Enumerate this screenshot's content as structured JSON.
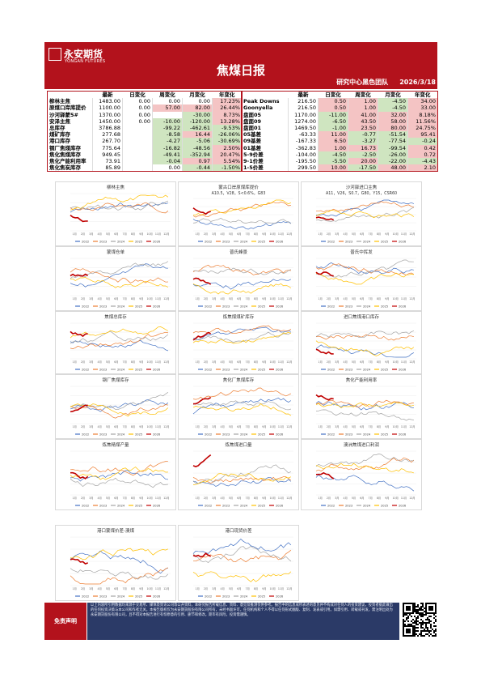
{
  "header": {
    "logo_cn": "永安期货",
    "logo_en": "YONGAN FUTURES",
    "title": "焦煤日报",
    "team": "研究中心黑色团队",
    "date": "2026/3/18"
  },
  "tables": [
    {
      "columns": [
        "最新",
        "日变化",
        "周变化",
        "月变化",
        "年变化"
      ],
      "rows": [
        {
          "label": "柳林主焦",
          "cells": [
            "1483.00",
            "0.00",
            "0.00",
            "0.00",
            "17.23%"
          ]
        },
        {
          "label": "原煤口岸库提价",
          "cells": [
            "1100.00",
            "0.00",
            "57.00",
            "82.00",
            "26.44%"
          ]
        },
        {
          "label": "沙河驿蒙5#",
          "cells": [
            "1370.00",
            "0.00",
            null,
            "-30.00",
            "8.73%"
          ]
        },
        {
          "label": "安泽主焦",
          "cells": [
            "1450.00",
            "0.00",
            "-10.00",
            "-120.00",
            "13.28%"
          ]
        },
        {
          "label": "总库存",
          "cells": [
            "3786.88",
            null,
            "-99.22",
            "-462.61",
            "-9.53%"
          ]
        },
        {
          "label": "煤矿库存",
          "cells": [
            "277.68",
            null,
            "-8.58",
            "16.44",
            "-26.06%"
          ]
        },
        {
          "label": "港口库存",
          "cells": [
            "267.70",
            null,
            "-4.27",
            "-5.06",
            "-30.69%"
          ]
        },
        {
          "label": "钢厂焦煤库存",
          "cells": [
            "775.64",
            null,
            "-16.82",
            "-48.56",
            "2.50%"
          ]
        },
        {
          "label": "焦化焦煤库存",
          "cells": [
            "949.45",
            null,
            "-49.41",
            "-352.94",
            "20.47%"
          ]
        },
        {
          "label": "焦化产能利用率",
          "cells": [
            "73.91",
            null,
            "-0.04",
            "0.97",
            "5.54%"
          ]
        },
        {
          "label": "焦化焦炭库存",
          "cells": [
            "85.89",
            null,
            "0.00",
            "-0.44",
            "-1.50%"
          ]
        }
      ]
    },
    {
      "columns": [
        "最新",
        "日变化",
        "周变化",
        "月变化",
        "年变化"
      ],
      "rows": [
        {
          "label": "Peak Downs",
          "cells": [
            "216.50",
            "0.50",
            "1.00",
            "-4.50",
            "34.00"
          ]
        },
        {
          "label": "Goonyella",
          "cells": [
            "216.50",
            "0.50",
            "1.00",
            "-4.50",
            "33.00"
          ]
        },
        {
          "label": "盘面05",
          "cells": [
            "1170.00",
            "-11.00",
            "41.00",
            "32.00",
            "8.18%"
          ]
        },
        {
          "label": "盘面09",
          "cells": [
            "1274.00",
            "-6.50",
            "43.50",
            "58.00",
            "11.56%"
          ]
        },
        {
          "label": "盘面01",
          "cells": [
            "1469.50",
            "-1.00",
            "23.50",
            "80.00",
            "24.75%"
          ]
        },
        {
          "label": "05基差",
          "cells": [
            "-63.33",
            "11.00",
            "-0.77",
            "-51.54",
            "95.41"
          ]
        },
        {
          "label": "09基差",
          "cells": [
            "-167.33",
            "6.50",
            "-3.27",
            "-77.54",
            "-0.24"
          ]
        },
        {
          "label": "01基差",
          "cells": [
            "-362.83",
            "1.00",
            "16.73",
            "-99.54",
            "0.42"
          ]
        },
        {
          "label": "5-9价差",
          "cells": [
            "-104.00",
            "-4.50",
            "-2.50",
            "-26.00",
            "0.72"
          ]
        },
        {
          "label": "9-1价差",
          "cells": [
            "-195.50",
            "-5.50",
            "20.00",
            "-22.00",
            "-4.43"
          ]
        },
        {
          "label": "1-5价差",
          "cells": [
            "299.50",
            "10.00",
            "-17.50",
            "48.00",
            "2.10"
          ]
        }
      ]
    }
  ],
  "charts": [
    {
      "title": "柳林主焦"
    },
    {
      "title": "蒙古口岸原煤库提价",
      "subtitle": "A10.5，V28，S<0.6%，G83"
    },
    {
      "title": "沙河驿进口主焦",
      "subtitle": "A11，V26，S0.7，G80，Y15，CSR60"
    },
    {
      "title": "蒙煤仓单"
    },
    {
      "title": "普氏峰景"
    },
    {
      "title": "普氏中挥发"
    },
    {
      "title": "焦煤总库存"
    },
    {
      "title": "炼焦煤煤矿库存"
    },
    {
      "title": "进口焦煤港口库存"
    },
    {
      "title": "钢厂焦煤库存"
    },
    {
      "title": "焦化厂焦煤库存"
    },
    {
      "title": "焦化产能利用率"
    },
    {
      "title": "炼焦精煤产量"
    },
    {
      "title": "炼焦煤进口量"
    },
    {
      "title": "澳洲焦煤进口利润"
    },
    {
      "title": "港口蒙煤价差-澳煤"
    },
    {
      "title": "港口现货价差"
    }
  ],
  "chart_legend": [
    "2022",
    "2023",
    "2024",
    "2025",
    "2026"
  ],
  "chart_months": [
    "1月",
    "2月",
    "3月",
    "4月",
    "5月",
    "6月",
    "7月",
    "8月",
    "9月",
    "10月",
    "11月",
    "12月"
  ],
  "footer": {
    "label": "免责声明",
    "text": "以上内容所引用数据均来源于交易所、媒体及资讯公司等公开资料，本研究报告所载信息、资料、意见及推测仅供参考。报告中的信息或所表述的意见并不构成对任何人的投资建议，投资者据此做出的任何投资决策与本公司和作者无关。本报告版权仅为永安期货股份有限公司所有，未经书面许可，任何机构和个人不得以任何形式翻版、复制、发表或引用。如需引用、转载或刊发，需注明出处为永安期货股份有限公司，且不得对本报告进行有悖原意的引用、删节和修改。期市有风险，投资需谨慎。"
  }
}
